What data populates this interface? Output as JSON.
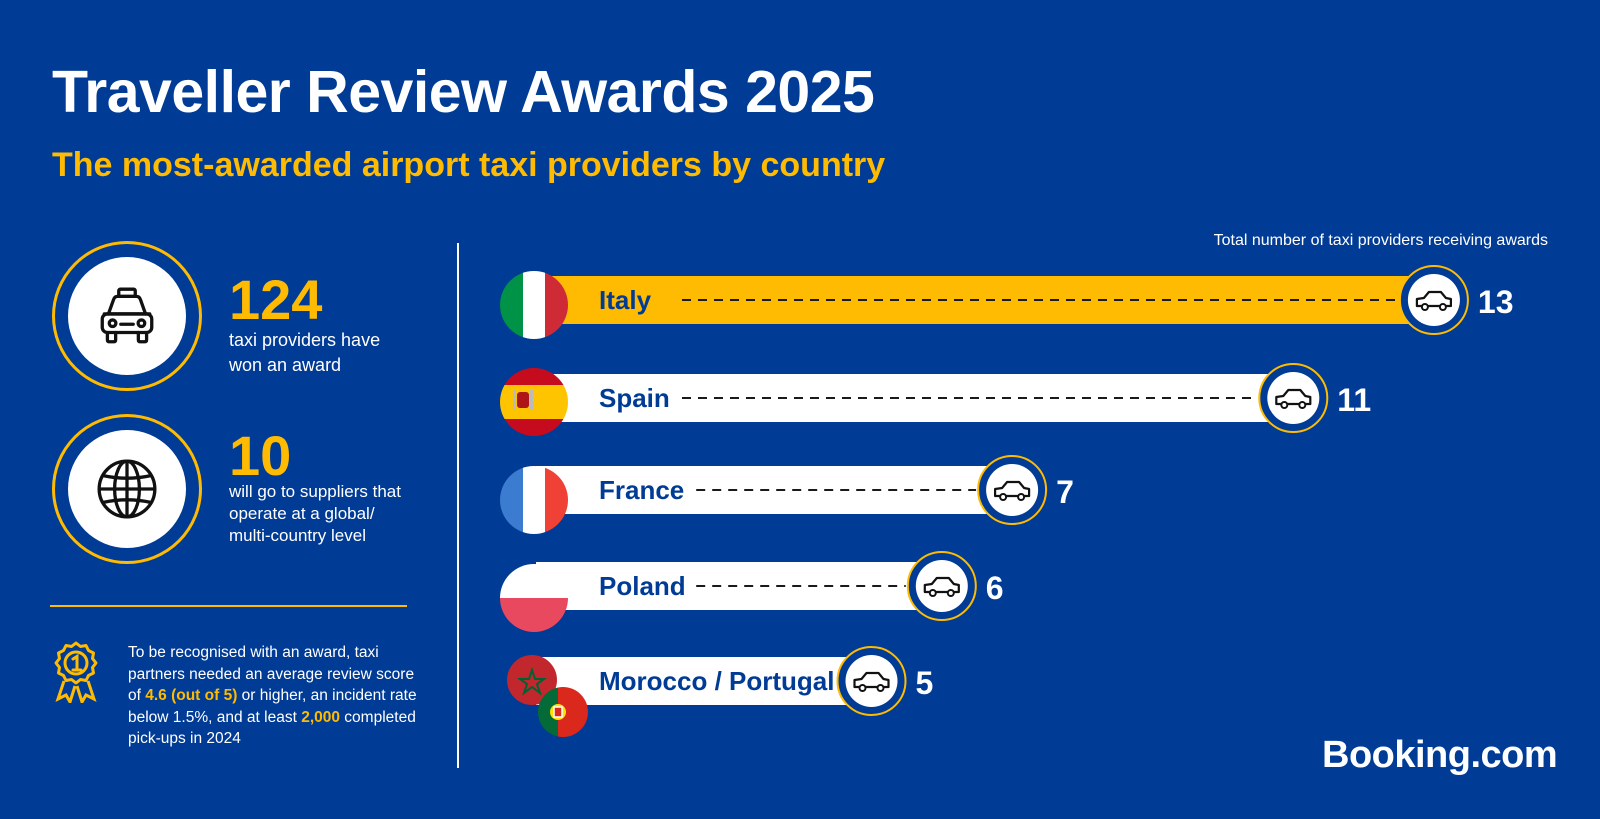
{
  "header": {
    "title": "Traveller Review Awards 2025",
    "subtitle": "The most-awarded airport taxi providers by country"
  },
  "stats": [
    {
      "value": "124",
      "text_lines": [
        "taxi providers have",
        "won an award"
      ],
      "icon": "taxi-icon"
    },
    {
      "value": "10",
      "text_lines": [
        "will go to suppliers that",
        "operate at a global/",
        "multi-country level"
      ],
      "icon": "globe-icon"
    }
  ],
  "criteria": {
    "icon": "medal-icon",
    "part1": "To be recognised with an award, taxi partners needed an average review score of ",
    "score": "4.6 (out of 5)",
    "part2": " or higher, an incident rate below 1.5%, and at least ",
    "pickups": "2,000",
    "part3": " completed pick-ups in 2024"
  },
  "chart_data": {
    "type": "bar",
    "orientation": "horizontal",
    "title": "Total number of taxi providers receiving awards",
    "categories": [
      "Italy",
      "Spain",
      "France",
      "Poland",
      "Morocco / Portugal"
    ],
    "values": [
      13,
      11,
      7,
      6,
      5
    ],
    "highlight": "Italy",
    "colors": {
      "highlight": "#febb02",
      "bar": "#ffffff",
      "label": "#003b95"
    },
    "icons": [
      "flag-italy",
      "flag-spain",
      "flag-france",
      "flag-poland",
      "flag-morocco",
      "flag-portugal",
      "car-icon"
    ]
  },
  "brand": {
    "name": "Booking.com"
  },
  "colors": {
    "background": "#003b95",
    "accent": "#febb02",
    "white": "#ffffff"
  }
}
